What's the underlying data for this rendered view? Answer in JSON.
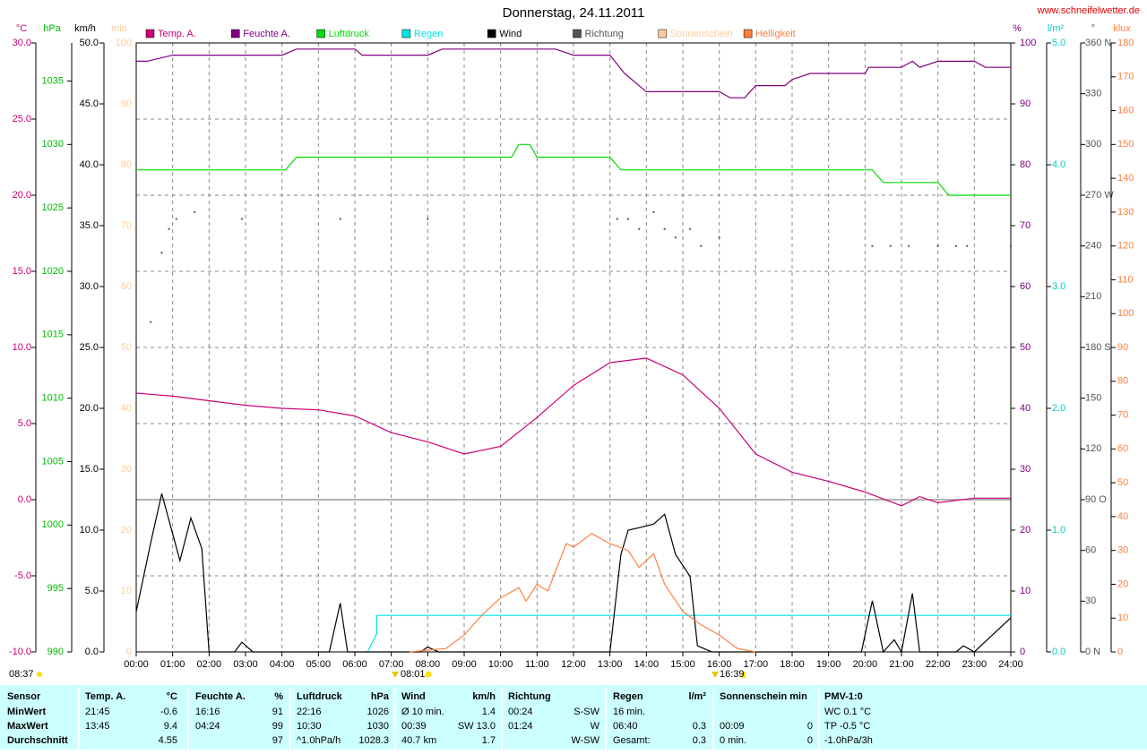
{
  "chart_data": {
    "type": "line",
    "title": "Donnerstag, 24.11.2011",
    "source": "www.schneifelwetter.de",
    "xlim": [
      0,
      24
    ],
    "xticks": [
      {
        "value": 0,
        "label": "00:00"
      },
      {
        "value": 1,
        "label": "01:00"
      },
      {
        "value": 2,
        "label": "02:00"
      },
      {
        "value": 3,
        "label": "03:00"
      },
      {
        "value": 4,
        "label": "04:00"
      },
      {
        "value": 5,
        "label": "05:00"
      },
      {
        "value": 6,
        "label": "06:00"
      },
      {
        "value": 7,
        "label": "07:00"
      },
      {
        "value": 8,
        "label": "08:00"
      },
      {
        "value": 9,
        "label": "09:00"
      },
      {
        "value": 10,
        "label": "10:00"
      },
      {
        "value": 11,
        "label": "11:00"
      },
      {
        "value": 12,
        "label": "12:00"
      },
      {
        "value": 13,
        "label": "13:00"
      },
      {
        "value": 14,
        "label": "14:00"
      },
      {
        "value": 15,
        "label": "15:00"
      },
      {
        "value": 16,
        "label": "16:00"
      },
      {
        "value": 17,
        "label": "17:00"
      },
      {
        "value": 18,
        "label": "18:00"
      },
      {
        "value": 19,
        "label": "19:00"
      },
      {
        "value": 20,
        "label": "20:00"
      },
      {
        "value": 21,
        "label": "21:00"
      },
      {
        "value": 22,
        "label": "22:00"
      },
      {
        "value": 23,
        "label": "23:00"
      },
      {
        "value": 24,
        "label": "24:00"
      }
    ],
    "grid": true,
    "y_axes": [
      {
        "label": "°C",
        "color": "#cc0077",
        "lim": [
          -10,
          30
        ],
        "ticks": [
          {
            "value": -10,
            "label": "-10.0"
          },
          {
            "value": -5,
            "label": "-5.0"
          },
          {
            "value": 0,
            "label": "0.0"
          },
          {
            "value": 5,
            "label": "5.0"
          },
          {
            "value": 10,
            "label": "10.0"
          },
          {
            "value": 15,
            "label": "15.0"
          },
          {
            "value": 20,
            "label": "20.0"
          },
          {
            "value": 25,
            "label": "25.0"
          },
          {
            "value": 30,
            "label": "30.0"
          }
        ]
      },
      {
        "label": "hPa",
        "color": "#00bb00",
        "lim": [
          990,
          1038
        ],
        "ticks": [
          990,
          995,
          1000,
          1005,
          1010,
          1015,
          1020,
          1025,
          1030,
          1035
        ]
      },
      {
        "label": "km/h",
        "color": "#000000",
        "lim": [
          0,
          50
        ],
        "ticks": [
          {
            "value": 0,
            "label": "0.0"
          },
          {
            "value": 5,
            "label": "5.0"
          },
          {
            "value": 10,
            "label": "10.0"
          },
          {
            "value": 15,
            "label": "15.0"
          },
          {
            "value": 20,
            "label": "20.0"
          },
          {
            "value": 25,
            "label": "25.0"
          },
          {
            "value": 30,
            "label": "30.0"
          },
          {
            "value": 35,
            "label": "35.0"
          },
          {
            "value": 40,
            "label": "40.0"
          },
          {
            "value": 45,
            "label": "45.0"
          },
          {
            "value": 50,
            "label": "50.0"
          }
        ]
      },
      {
        "label": "min",
        "color": "#ffcc99",
        "lim": [
          0,
          100
        ],
        "ticks": [
          0,
          10,
          20,
          30,
          40,
          50,
          60,
          70,
          80,
          90,
          100
        ]
      },
      {
        "label": "%",
        "color": "#800080",
        "lim": [
          0,
          100
        ],
        "ticks": [
          0,
          10,
          20,
          30,
          40,
          50,
          60,
          70,
          80,
          90,
          100
        ]
      },
      {
        "label": "l/m²",
        "color": "#00cccc",
        "lim": [
          0,
          5
        ],
        "ticks": [
          {
            "value": 0,
            "label": "0.0"
          },
          {
            "value": 1,
            "label": "1.0"
          },
          {
            "value": 2,
            "label": "2.0"
          },
          {
            "value": 3,
            "label": "3.0"
          },
          {
            "value": 4,
            "label": "4.0"
          },
          {
            "value": 5,
            "label": "5.0"
          }
        ]
      },
      {
        "label": "°",
        "color": "#555555",
        "lim": [
          0,
          360
        ],
        "ticks": [
          {
            "value": 0,
            "label": "0 N"
          },
          30,
          60,
          {
            "value": 90,
            "label": "90 O"
          },
          120,
          150,
          {
            "value": 180,
            "label": "180 S"
          },
          210,
          240,
          {
            "value": 270,
            "label": "270 W"
          },
          300,
          330,
          {
            "value": 360,
            "label": "360 N"
          }
        ]
      },
      {
        "label": "klux",
        "color": "#ff7f3f",
        "lim": [
          0,
          180
        ],
        "ticks": [
          0,
          10,
          20,
          30,
          40,
          50,
          60,
          70,
          80,
          90,
          100,
          110,
          120,
          130,
          140,
          150,
          160,
          170,
          180
        ]
      }
    ],
    "series": [
      {
        "name": "Temp. A.",
        "color": "#cc0077",
        "axis": 0,
        "x": [
          0,
          0.5,
          1,
          2,
          3,
          4,
          5,
          6,
          7,
          8,
          9,
          10,
          11,
          12,
          13,
          14,
          15,
          16,
          17,
          18,
          19,
          20,
          21,
          21.5,
          22,
          23,
          24
        ],
        "values": [
          7.0,
          6.9,
          6.8,
          6.5,
          6.2,
          6.0,
          5.9,
          5.5,
          4.4,
          3.8,
          3.0,
          3.5,
          5.4,
          7.5,
          9.0,
          9.3,
          8.2,
          6.0,
          3.0,
          1.8,
          1.2,
          0.5,
          -0.4,
          0.2,
          -0.2,
          0.1,
          0.1
        ]
      },
      {
        "name": "Feuchte A.",
        "color": "#800080",
        "axis": 4,
        "x": [
          0,
          0.3,
          1,
          4,
          4.4,
          6,
          6.2,
          8,
          8.4,
          9,
          9.5,
          10.2,
          10.5,
          11.5,
          12,
          13,
          13.4,
          14,
          16,
          16.3,
          16.7,
          17,
          17.8,
          18,
          18.5,
          20,
          20.1,
          21,
          21.3,
          21.5,
          22,
          23,
          23.3,
          24
        ],
        "values": [
          97,
          97,
          98,
          98,
          99,
          99,
          98,
          98,
          99,
          99,
          99,
          99,
          99,
          99,
          98,
          98,
          95,
          92,
          92,
          91,
          91,
          93,
          93,
          94,
          95,
          95,
          96,
          96,
          97,
          96,
          97,
          97,
          96,
          96
        ]
      },
      {
        "name": "Luftdruck",
        "color": "#00dd00",
        "axis": 1,
        "x": [
          0,
          4.1,
          4.4,
          10.3,
          10.5,
          10.8,
          11,
          13,
          13.3,
          20.2,
          20.5,
          22,
          22.3,
          24
        ],
        "values": [
          1028,
          1028,
          1029,
          1029,
          1030,
          1030,
          1029,
          1029,
          1028,
          1028,
          1027,
          1027,
          1026,
          1026
        ]
      },
      {
        "name": "Regen",
        "color": "#00e5e5",
        "axis": 5,
        "x": [
          6.35,
          6.6,
          6.6,
          24
        ],
        "values": [
          0,
          0.15,
          0.3,
          0.3
        ]
      },
      {
        "name": "Wind",
        "color": "#000000",
        "axis": 2,
        "x": [
          0,
          0.4,
          0.7,
          1.2,
          1.5,
          1.8,
          2.0,
          2.7,
          2.9,
          3.2,
          5.3,
          5.6,
          5.8,
          7.8,
          8.0,
          8.3,
          13.0,
          13.3,
          13.5,
          13.8,
          14.2,
          14.5,
          14.8,
          15.2,
          15.4,
          15.8,
          19.9,
          20.2,
          20.5,
          20.8,
          21.0,
          21.3,
          21.5,
          22.5,
          22.7,
          23.0,
          24.0
        ],
        "values": [
          3.3,
          9,
          13,
          7.5,
          11,
          8.5,
          0,
          0,
          0.8,
          0,
          0,
          4,
          0,
          0,
          0.4,
          0,
          0,
          8,
          10,
          10.2,
          10.5,
          11.3,
          8,
          6.2,
          0.5,
          0,
          0,
          4.2,
          0,
          1,
          0,
          4.8,
          0,
          0,
          0.5,
          0,
          2.8
        ]
      },
      {
        "name": "Richtung",
        "color": "#555555",
        "axis": 6,
        "marker": "dot",
        "x": [
          0.4,
          0.7,
          0.9,
          1.1,
          1.6,
          2.9,
          5.6,
          8.0,
          13.2,
          13.5,
          13.8,
          14.2,
          14.5,
          14.8,
          15.2,
          15.5,
          16,
          20.2,
          20.7,
          21.2,
          22.0,
          22.5,
          22.8,
          24
        ],
        "values": [
          195,
          236,
          250,
          256,
          260,
          256,
          256,
          256,
          256,
          256,
          250,
          260,
          250,
          245,
          250,
          240,
          245,
          240,
          240,
          240,
          240,
          240,
          240,
          240
        ]
      },
      {
        "name": "Sonnenschein",
        "color": "#ffcc99",
        "axis": 3,
        "x": [],
        "values": []
      },
      {
        "name": "Helligkeit",
        "color": "#ff7f3f",
        "axis": 7,
        "x": [
          7.5,
          8.5,
          9,
          9.5,
          10,
          10.5,
          10.7,
          11,
          11.3,
          11.8,
          12,
          12.5,
          13,
          13.5,
          13.8,
          14.2,
          14.5,
          15,
          15.5,
          16,
          16.5,
          17
        ],
        "values": [
          0,
          1,
          5,
          11,
          16,
          19,
          15,
          20,
          18,
          32,
          31,
          35,
          32,
          30,
          25,
          29,
          20,
          12,
          8,
          5,
          1,
          0
        ]
      }
    ],
    "annotations": [
      "08:37",
      "08:01",
      "16:39"
    ]
  },
  "table": {
    "sections": [
      {
        "header": [
          "Sensor"
        ],
        "rows": [
          [
            "MinWert"
          ],
          [
            "MaxWert"
          ],
          [
            "Durchschnitt"
          ]
        ]
      },
      {
        "header": [
          "Temp. A.",
          "°C"
        ],
        "rows": [
          [
            "21:45",
            "-0.6"
          ],
          [
            "13:45",
            "9.4"
          ],
          [
            null,
            "4.55"
          ]
        ]
      },
      {
        "header": [
          "Feuchte A.",
          "%"
        ],
        "rows": [
          [
            "16:16",
            "91"
          ],
          [
            "04:24",
            "99"
          ],
          [
            null,
            "97"
          ]
        ]
      },
      {
        "header": [
          "Luftdruck",
          "hPa"
        ],
        "rows": [
          [
            "22:16",
            "1026"
          ],
          [
            "10:30",
            "1030"
          ],
          [
            "^1.0hPa/h",
            "1028.3"
          ]
        ]
      },
      {
        "header": [
          "Wind",
          "km/h"
        ],
        "rows": [
          [
            "Ø 10 min.",
            "1.4"
          ],
          [
            "00:39",
            "SW 13.0"
          ],
          [
            "40.7 km",
            "1.7"
          ]
        ]
      },
      {
        "header": [
          "Richtung",
          null
        ],
        "rows": [
          [
            "00:24",
            "S-SW"
          ],
          [
            "01:24",
            "W"
          ],
          [
            null,
            "W-SW"
          ]
        ]
      },
      {
        "header": [
          "Regen",
          "l/m²"
        ],
        "rows": [
          [
            "16 min.",
            null
          ],
          [
            "06:40",
            "0.3"
          ],
          [
            "Gesamt:",
            "0.3"
          ]
        ]
      },
      {
        "header": [
          "Sonnenschein min",
          null
        ],
        "rows": [
          [
            null,
            null
          ],
          [
            "00:09",
            "0"
          ],
          [
            "0 min.",
            "0"
          ]
        ]
      },
      {
        "header": [
          "PMV-1:0"
        ],
        "rows": [
          [
            "WC 0.1 °C"
          ],
          [
            "TP -0.5 °C"
          ],
          [
            "-1.0hPa/3h"
          ]
        ]
      }
    ]
  }
}
